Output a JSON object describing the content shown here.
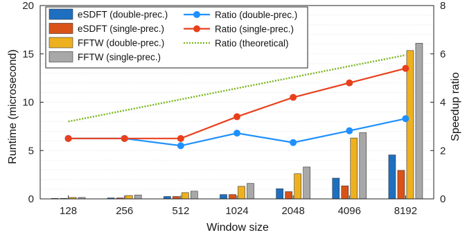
{
  "chart_data": {
    "type": "bar",
    "title": "",
    "xlabel": "Window size",
    "ylabel": "Runtime (microsecond)",
    "y2label": "Speedup ratio",
    "categories": [
      "128",
      "256",
      "512",
      "1024",
      "2048",
      "4096",
      "8192"
    ],
    "ylim": [
      0,
      20
    ],
    "y2lim": [
      0,
      8
    ],
    "yticks": [
      0,
      5,
      10,
      15,
      20
    ],
    "y2ticks": [
      0,
      2,
      4,
      6,
      8
    ],
    "grid": "horizontal minor",
    "legend_position": "top-left",
    "bar_series": [
      {
        "name": "eSDFT (double-prec.)",
        "color": "#1f6fc0",
        "values": [
          0.05,
          0.1,
          0.25,
          0.45,
          1.05,
          2.15,
          4.55
        ]
      },
      {
        "name": "eSDFT (single-prec.)",
        "color": "#d95319",
        "values": [
          0.05,
          0.1,
          0.25,
          0.45,
          0.75,
          1.35,
          2.95
        ]
      },
      {
        "name": "FFTW (double-prec.)",
        "color": "#edb120",
        "values": [
          0.15,
          0.35,
          0.65,
          1.3,
          2.6,
          6.3,
          15.35
        ]
      },
      {
        "name": "FFTW (single-prec.)",
        "color": "#a8a8a8",
        "values": [
          0.15,
          0.4,
          0.8,
          1.6,
          3.3,
          6.85,
          16.1
        ]
      }
    ],
    "line_series": [
      {
        "name": "Ratio (double-prec.)",
        "color": "#1e90ff",
        "style": "solid-marker",
        "x_index": [
          0,
          1,
          2,
          3,
          4,
          5,
          6
        ],
        "values": [
          2.5,
          2.5,
          2.2,
          2.72,
          2.33,
          2.82,
          3.32
        ]
      },
      {
        "name": "Ratio (single-prec.)",
        "color": "#e8401c",
        "style": "solid-marker",
        "x_index": [
          0,
          1,
          2,
          3,
          4,
          5,
          6
        ],
        "values": [
          2.5,
          2.5,
          2.5,
          3.4,
          4.2,
          4.8,
          5.4
        ]
      },
      {
        "name": "Ratio (theoretical)",
        "color": "#7ab51d",
        "style": "dotted",
        "x_index": [
          0,
          6
        ],
        "values": [
          3.2,
          5.95
        ]
      }
    ]
  }
}
